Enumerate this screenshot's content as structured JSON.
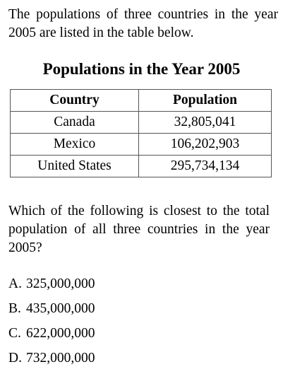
{
  "intro_text": "The populations of three countries in the year 2005 are listed in the table below.",
  "table": {
    "title": "Populations in the Year 2005",
    "headers": [
      "Country",
      "Population"
    ],
    "rows": [
      {
        "country": "Canada",
        "population": "32,805,041"
      },
      {
        "country": "Mexico",
        "population": "106,202,903"
      },
      {
        "country": "United States",
        "population": "295,734,134"
      }
    ]
  },
  "question_text": "Which of the following is closest to the total population of all three countries in the year 2005?",
  "choices": [
    {
      "letter": "A.",
      "text": "325,000,000"
    },
    {
      "letter": "B.",
      "text": "435,000,000"
    },
    {
      "letter": "C.",
      "text": "622,000,000"
    },
    {
      "letter": "D.",
      "text": "732,000,000"
    }
  ]
}
